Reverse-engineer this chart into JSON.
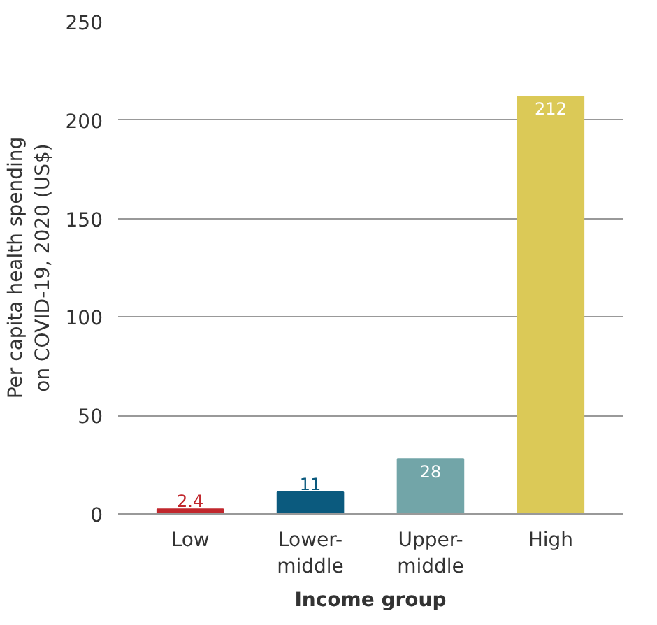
{
  "chart_data": {
    "type": "bar",
    "xlabel": "Income group",
    "ylabel": "Per capita health spending\non COVID-19, 2020 (US$)",
    "categories": [
      "Low",
      "Lower-\nmiddle",
      "Upper-\nmiddle",
      "High"
    ],
    "values": [
      2.4,
      11,
      28,
      212
    ],
    "colors": [
      "#c1272d",
      "#0b5a7e",
      "#72a5a8",
      "#dbc957"
    ],
    "ylim": [
      0,
      250
    ],
    "yticks": [
      0,
      50,
      100,
      150,
      200,
      250
    ],
    "grid": "y",
    "data_labels": true
  }
}
